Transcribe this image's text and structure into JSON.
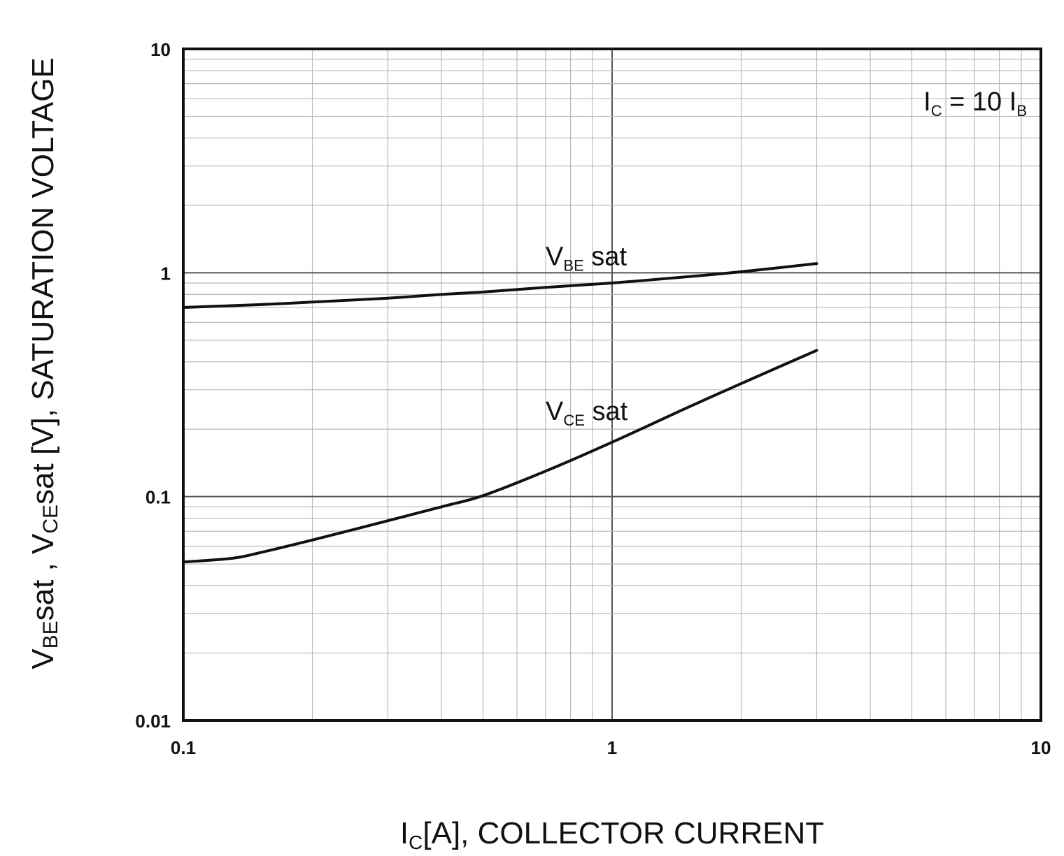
{
  "chart_data": {
    "type": "line",
    "xscale": "log",
    "yscale": "log",
    "xlim": [
      0.1,
      10
    ],
    "ylim": [
      0.01,
      10
    ],
    "grid": true,
    "xlabel": {
      "main": "I",
      "sub": "C",
      "rest": "[A], COLLECTOR CURRENT"
    },
    "ylabel": {
      "p1": "V",
      "s1": "BE",
      "p2": "sat  ,  V",
      "s2": "CE",
      "p3": "sat  [V], SATURATION VOLTAGE"
    },
    "x_ticks": [
      "0.1",
      "1",
      "10"
    ],
    "y_ticks": [
      "0.01",
      "0.1",
      "1",
      "10"
    ],
    "annotation": {
      "a": "I",
      "a_sub": "C",
      "mid": " = 10 I",
      "b_sub": "B"
    },
    "series": [
      {
        "label_main": "V",
        "label_sub": "BE",
        "label_rest": " sat",
        "label_at": [
          0.7,
          1.08
        ],
        "x": [
          0.1,
          0.15,
          0.2,
          0.3,
          0.4,
          0.5,
          0.7,
          1.0,
          1.5,
          2.0,
          3.0
        ],
        "y": [
          0.7,
          0.72,
          0.74,
          0.77,
          0.8,
          0.82,
          0.86,
          0.9,
          0.96,
          1.01,
          1.1
        ]
      },
      {
        "label_main": "V",
        "label_sub": "CE",
        "label_rest": " sat",
        "label_at": [
          0.7,
          0.22
        ],
        "x": [
          0.1,
          0.13,
          0.15,
          0.2,
          0.3,
          0.4,
          0.5,
          0.7,
          1.0,
          1.5,
          2.0,
          3.0
        ],
        "y": [
          0.051,
          0.053,
          0.056,
          0.064,
          0.078,
          0.09,
          0.101,
          0.13,
          0.175,
          0.25,
          0.32,
          0.45
        ]
      }
    ]
  }
}
